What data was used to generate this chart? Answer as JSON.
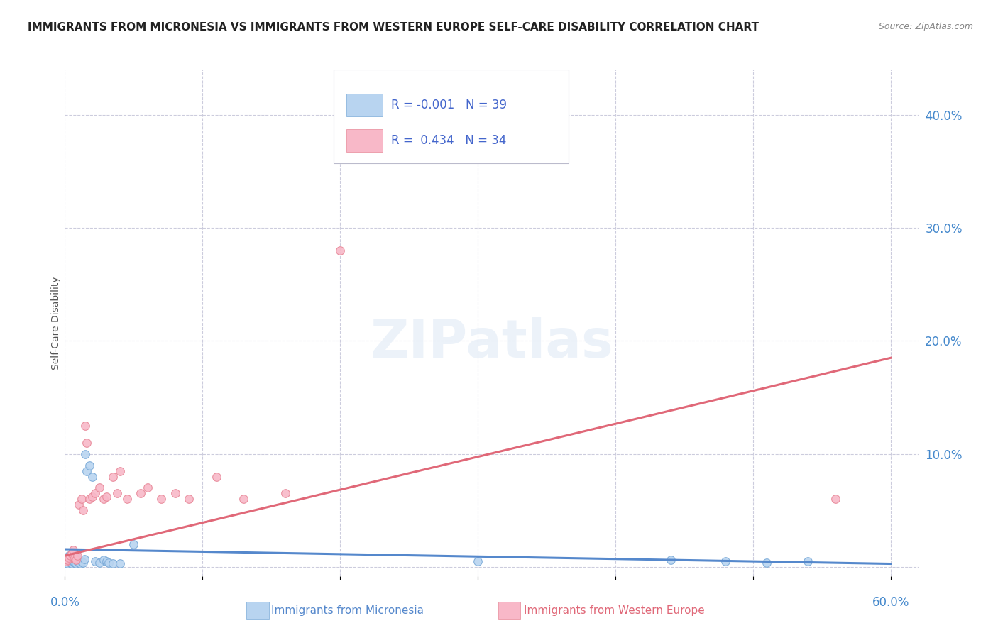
{
  "title": "IMMIGRANTS FROM MICRONESIA VS IMMIGRANTS FROM WESTERN EUROPE SELF-CARE DISABILITY CORRELATION CHART",
  "source": "Source: ZipAtlas.com",
  "ylabel": "Self-Care Disability",
  "xlim": [
    0.0,
    0.62
  ],
  "ylim": [
    -0.008,
    0.44
  ],
  "xtick_vals": [
    0.0,
    0.1,
    0.2,
    0.3,
    0.4,
    0.5,
    0.6
  ],
  "ytick_vals": [
    0.0,
    0.1,
    0.2,
    0.3,
    0.4
  ],
  "series1_color": "#b8d4f0",
  "series1_edge_color": "#7aaad8",
  "series1_line_color": "#5588cc",
  "series2_color": "#f8b8c8",
  "series2_edge_color": "#e88898",
  "series2_line_color": "#e06878",
  "series1_label": "Immigrants from Micronesia",
  "series2_label": "Immigrants from Western Europe",
  "R1": -0.001,
  "N1": 39,
  "R2": 0.434,
  "N2": 34,
  "legend_color": "#4466cc",
  "background_color": "#ffffff",
  "grid_color": "#ccccdd",
  "marker_size": 70,
  "micronesia_x": [
    0.001,
    0.002,
    0.003,
    0.003,
    0.004,
    0.004,
    0.005,
    0.005,
    0.006,
    0.006,
    0.007,
    0.007,
    0.008,
    0.008,
    0.009,
    0.009,
    0.01,
    0.01,
    0.011,
    0.012,
    0.013,
    0.014,
    0.015,
    0.016,
    0.018,
    0.02,
    0.022,
    0.025,
    0.028,
    0.03,
    0.032,
    0.035,
    0.04,
    0.05,
    0.3,
    0.44,
    0.48,
    0.51,
    0.54
  ],
  "micronesia_y": [
    0.005,
    0.003,
    0.006,
    0.01,
    0.004,
    0.008,
    0.003,
    0.007,
    0.005,
    0.009,
    0.004,
    0.006,
    0.003,
    0.007,
    0.005,
    0.008,
    0.004,
    0.006,
    0.003,
    0.005,
    0.004,
    0.007,
    0.1,
    0.085,
    0.09,
    0.08,
    0.005,
    0.004,
    0.006,
    0.005,
    0.004,
    0.003,
    0.003,
    0.02,
    0.005,
    0.006,
    0.005,
    0.004,
    0.005
  ],
  "western_europe_x": [
    0.001,
    0.002,
    0.003,
    0.004,
    0.005,
    0.006,
    0.007,
    0.008,
    0.009,
    0.01,
    0.012,
    0.013,
    0.015,
    0.016,
    0.018,
    0.02,
    0.022,
    0.025,
    0.028,
    0.03,
    0.035,
    0.038,
    0.04,
    0.045,
    0.055,
    0.06,
    0.07,
    0.08,
    0.09,
    0.11,
    0.13,
    0.16,
    0.2,
    0.56
  ],
  "western_europe_y": [
    0.005,
    0.006,
    0.008,
    0.01,
    0.012,
    0.015,
    0.008,
    0.006,
    0.01,
    0.055,
    0.06,
    0.05,
    0.125,
    0.11,
    0.06,
    0.062,
    0.065,
    0.07,
    0.06,
    0.062,
    0.08,
    0.065,
    0.085,
    0.06,
    0.065,
    0.07,
    0.06,
    0.065,
    0.06,
    0.08,
    0.06,
    0.065,
    0.28,
    0.06
  ]
}
